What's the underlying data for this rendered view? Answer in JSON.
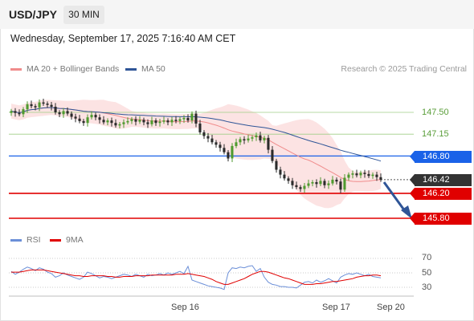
{
  "header": {
    "symbol": "USD/JPY",
    "timeframe": "30 MIN"
  },
  "datetime": "Wednesday, September 17, 2025 7:16:40 AM CET",
  "legend": {
    "ma20": {
      "label": "MA 20 + Bollinger Bands",
      "color": "#f08c8c"
    },
    "ma50": {
      "label": "MA 50",
      "color": "#2f5597"
    }
  },
  "credit": "Research © 2025 Trading Central",
  "levels": {
    "r1": {
      "label": "147.50",
      "value": 147.5,
      "color": "#6aa84f"
    },
    "r2": {
      "label": "147.15",
      "value": 147.15,
      "color": "#6aa84f"
    },
    "pivot": {
      "label": "146.80",
      "value": 146.8,
      "color": "#1a62e8"
    },
    "last": {
      "label": "146.42",
      "value": 146.42,
      "color": "#333333"
    },
    "s1": {
      "label": "146.20",
      "value": 146.2,
      "color": "#e00000"
    },
    "s2": {
      "label": "145.80",
      "value": 145.8,
      "color": "#e00000"
    }
  },
  "rsi_legend": {
    "rsi": {
      "label": "RSI",
      "color": "#6b8fd8"
    },
    "ma9": {
      "label": "9MA",
      "color": "#e00000"
    }
  },
  "rsi_axis": [
    "70",
    "50",
    "30"
  ],
  "x_labels": [
    "Sep 16",
    "Sep 17",
    "Sep 20"
  ],
  "chart_data": {
    "type": "candlestick",
    "price_range": [
      145.6,
      148.0
    ],
    "closes": [
      147.52,
      147.49,
      147.47,
      147.55,
      147.63,
      147.6,
      147.58,
      147.66,
      147.64,
      147.62,
      147.59,
      147.5,
      147.47,
      147.52,
      147.48,
      147.43,
      147.4,
      147.36,
      147.33,
      147.42,
      147.46,
      147.42,
      147.38,
      147.34,
      147.37,
      147.33,
      147.29,
      147.31,
      147.34,
      147.36,
      147.39,
      147.35,
      147.38,
      147.34,
      147.31,
      147.37,
      147.33,
      147.35,
      147.37,
      147.34,
      147.38,
      147.36,
      147.39,
      147.41,
      147.37,
      147.48,
      147.32,
      147.18,
      147.12,
      147.08,
      147.02,
      146.98,
      146.93,
      146.86,
      146.76,
      146.96,
      147.02,
      147.07,
      147.05,
      147.08,
      147.1,
      147.13,
      147.05,
      147.09,
      146.9,
      146.72,
      146.58,
      146.5,
      146.44,
      146.4,
      146.33,
      146.3,
      146.27,
      146.32,
      146.36,
      146.38,
      146.35,
      146.4,
      146.33,
      146.36,
      146.42,
      146.39,
      146.26,
      146.45,
      146.5,
      146.52,
      146.49,
      146.53,
      146.51,
      146.48,
      146.5,
      146.46,
      146.42
    ],
    "rsi_range": [
      20,
      80
    ],
    "rsi": [
      52,
      48,
      51,
      55,
      58,
      56,
      53,
      57,
      55,
      51,
      49,
      44,
      46,
      50,
      47,
      45,
      43,
      41,
      44,
      51,
      49,
      46,
      43,
      45,
      44,
      42,
      44,
      46,
      48,
      47,
      45,
      48,
      46,
      44,
      48,
      46,
      47,
      49,
      47,
      50,
      48,
      50,
      52,
      49,
      59,
      40,
      38,
      36,
      34,
      32,
      31,
      30,
      29,
      27,
      50,
      57,
      56,
      58,
      57,
      59,
      60,
      52,
      56,
      44,
      37,
      34,
      33,
      31,
      31,
      30,
      30,
      29,
      33,
      37,
      38,
      36,
      40,
      37,
      39,
      42,
      39,
      36,
      44,
      47,
      49,
      48,
      50,
      48,
      46,
      48,
      45,
      44,
      43
    ],
    "rsi_ma9": [
      51,
      51,
      51,
      52,
      53,
      54,
      54,
      54,
      54,
      53,
      52,
      51,
      50,
      49,
      48,
      47,
      46,
      46,
      45,
      45,
      46,
      46,
      46,
      46,
      45,
      45,
      44,
      44,
      45,
      45,
      45,
      46,
      46,
      46,
      46,
      47,
      47,
      47,
      47,
      47,
      47,
      48,
      48,
      48,
      49,
      48,
      47,
      46,
      45,
      43,
      41,
      38,
      36,
      34,
      34,
      36,
      38,
      40,
      42,
      45,
      48,
      50,
      52,
      52,
      51,
      49,
      47,
      45,
      43,
      42,
      40,
      38,
      36,
      34,
      34,
      34,
      35,
      35,
      36,
      37,
      38,
      38,
      39,
      40,
      41,
      42,
      44,
      45,
      46,
      46,
      47,
      47,
      46
    ]
  }
}
